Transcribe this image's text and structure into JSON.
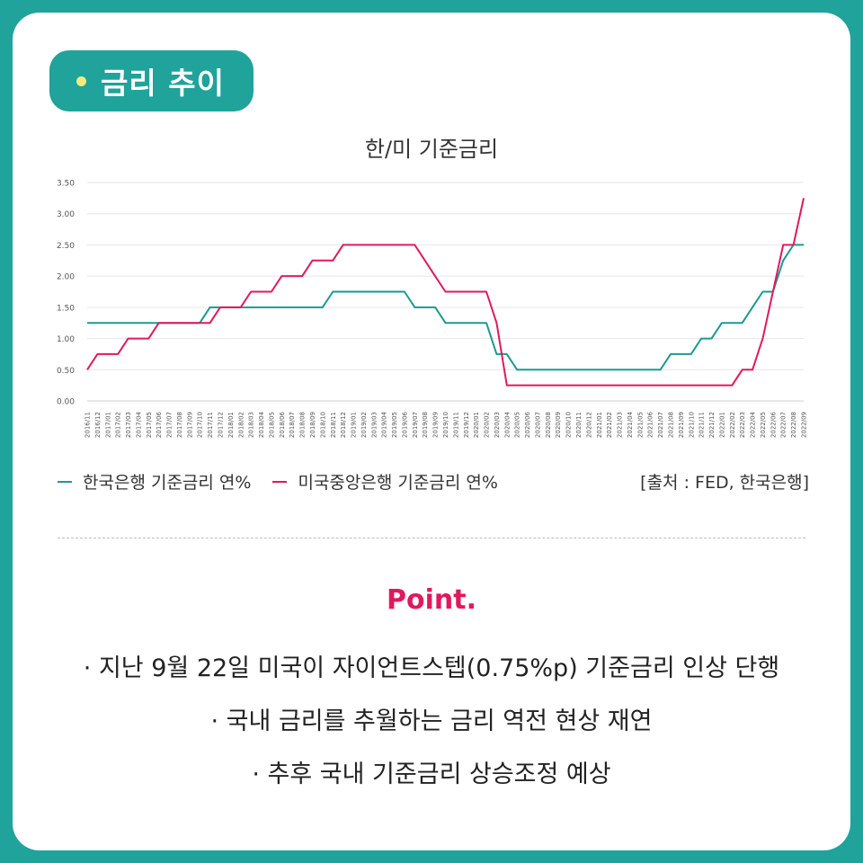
{
  "header": {
    "title": "금리 추이"
  },
  "chart_data": {
    "type": "line",
    "title": "한/미 기준금리",
    "xlabel": "",
    "ylabel": "",
    "ylim": [
      0,
      3.5
    ],
    "yticks": [
      "0.00",
      "0.50",
      "1.00",
      "1.50",
      "2.00",
      "2.50",
      "3.00",
      "3.50"
    ],
    "grid": true,
    "legend_position": "bottom-left",
    "source": "[출처 : FED, 한국은행]",
    "categories": [
      "2016/11",
      "2016/12",
      "2017/01",
      "2017/02",
      "2017/03",
      "2017/04",
      "2017/05",
      "2017/06",
      "2017/07",
      "2017/08",
      "2017/09",
      "2017/10",
      "2017/11",
      "2017/12",
      "2018/01",
      "2018/02",
      "2018/03",
      "2018/04",
      "2018/05",
      "2018/06",
      "2018/07",
      "2018/08",
      "2018/09",
      "2018/10",
      "2018/11",
      "2018/12",
      "2019/01",
      "2019/02",
      "2019/03",
      "2019/04",
      "2019/05",
      "2019/06",
      "2019/07",
      "2019/08",
      "2019/09",
      "2019/10",
      "2019/11",
      "2019/12",
      "2020/01",
      "2020/02",
      "2020/03",
      "2020/04",
      "2020/05",
      "2020/06",
      "2020/07",
      "2020/08",
      "2020/09",
      "2020/10",
      "2020/11",
      "2020/12",
      "2021/01",
      "2021/02",
      "2021/03",
      "2021/04",
      "2021/05",
      "2021/06",
      "2021/07",
      "2021/08",
      "2021/09",
      "2021/10",
      "2021/11",
      "2021/12",
      "2022/01",
      "2022/02",
      "2022/03",
      "2022/04",
      "2022/05",
      "2022/06",
      "2022/07",
      "2022/08",
      "2022/09"
    ],
    "series": [
      {
        "name": "한국은행 기준금리 연%",
        "color": "#1a9a91",
        "values": [
          1.25,
          1.25,
          1.25,
          1.25,
          1.25,
          1.25,
          1.25,
          1.25,
          1.25,
          1.25,
          1.25,
          1.25,
          1.5,
          1.5,
          1.5,
          1.5,
          1.5,
          1.5,
          1.5,
          1.5,
          1.5,
          1.5,
          1.5,
          1.5,
          1.75,
          1.75,
          1.75,
          1.75,
          1.75,
          1.75,
          1.75,
          1.75,
          1.5,
          1.5,
          1.5,
          1.25,
          1.25,
          1.25,
          1.25,
          1.25,
          0.75,
          0.75,
          0.5,
          0.5,
          0.5,
          0.5,
          0.5,
          0.5,
          0.5,
          0.5,
          0.5,
          0.5,
          0.5,
          0.5,
          0.5,
          0.5,
          0.5,
          0.75,
          0.75,
          0.75,
          1.0,
          1.0,
          1.25,
          1.25,
          1.25,
          1.5,
          1.75,
          1.75,
          2.25,
          2.5,
          2.5
        ]
      },
      {
        "name": "미국중앙은행 기준금리 연%",
        "color": "#e0195d",
        "values": [
          0.5,
          0.75,
          0.75,
          0.75,
          1.0,
          1.0,
          1.0,
          1.25,
          1.25,
          1.25,
          1.25,
          1.25,
          1.25,
          1.5,
          1.5,
          1.5,
          1.75,
          1.75,
          1.75,
          2.0,
          2.0,
          2.0,
          2.25,
          2.25,
          2.25,
          2.5,
          2.5,
          2.5,
          2.5,
          2.5,
          2.5,
          2.5,
          2.5,
          2.25,
          2.0,
          1.75,
          1.75,
          1.75,
          1.75,
          1.75,
          1.25,
          0.25,
          0.25,
          0.25,
          0.25,
          0.25,
          0.25,
          0.25,
          0.25,
          0.25,
          0.25,
          0.25,
          0.25,
          0.25,
          0.25,
          0.25,
          0.25,
          0.25,
          0.25,
          0.25,
          0.25,
          0.25,
          0.25,
          0.25,
          0.5,
          0.5,
          1.0,
          1.75,
          2.5,
          2.5,
          3.25
        ]
      }
    ]
  },
  "point": {
    "title": "Point.",
    "items": [
      "· 지난 9월 22일 미국이 자이언트스텝(0.75%p) 기준금리 인상 단행",
      "· 국내 금리를 추월하는 금리 역전 현상 재연",
      "· 추후 국내 기준금리 상승조정 예상"
    ]
  }
}
